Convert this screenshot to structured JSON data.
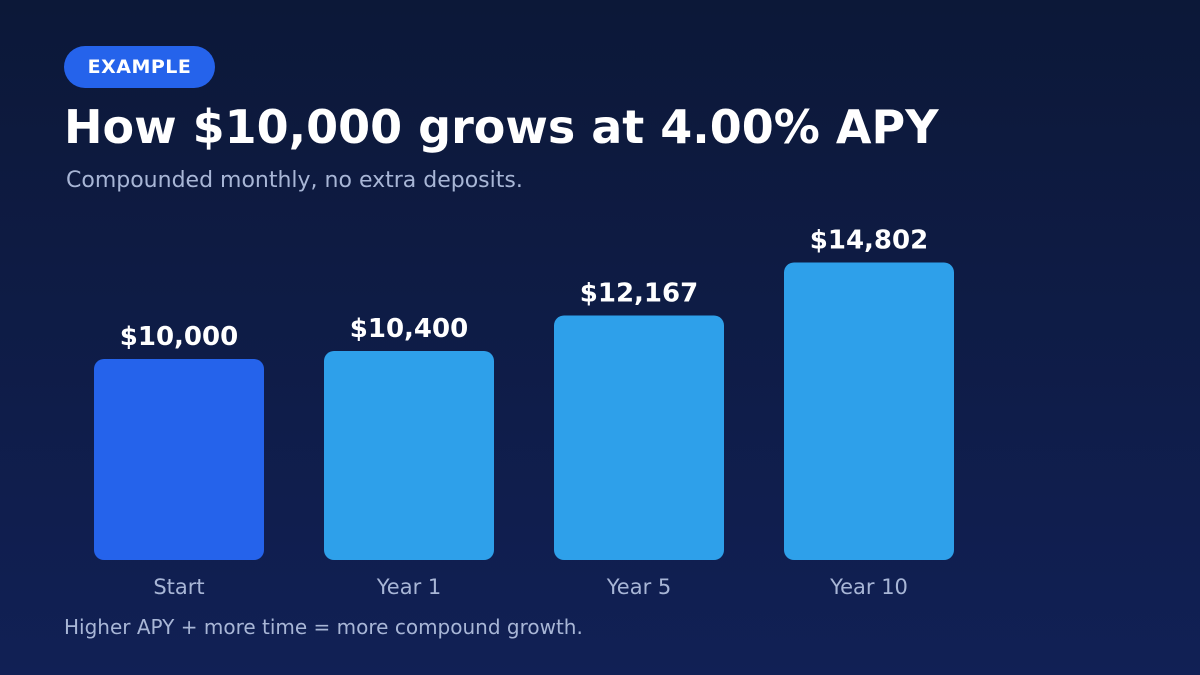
{
  "badge": "EXAMPLE",
  "title": "How $10,000 grows at 4.00% APY",
  "subtitle": "Compounded monthly, no extra deposits.",
  "footnote": "Higher APY + more time = more compound growth.",
  "colors": {
    "background_top": "#0c1838",
    "background_bottom": "#112055",
    "badge": "#2563eb",
    "start_bar": "#2563eb",
    "growth_bar": "#2ea0ea",
    "muted_text": "#a8b6d6"
  },
  "chart_data": {
    "type": "bar",
    "categories": [
      "Start",
      "Year 1",
      "Year 5",
      "Year 10"
    ],
    "values": [
      10000,
      10400,
      12167,
      14802
    ],
    "value_labels": [
      "$10,000",
      "$10,400",
      "$12,167",
      "$14,802"
    ],
    "bar_colors": [
      "#2563eb",
      "#2ea0ea",
      "#2ea0ea",
      "#2ea0ea"
    ],
    "title": "",
    "xlabel": "",
    "ylabel": "",
    "grid": false,
    "legend": "none"
  }
}
